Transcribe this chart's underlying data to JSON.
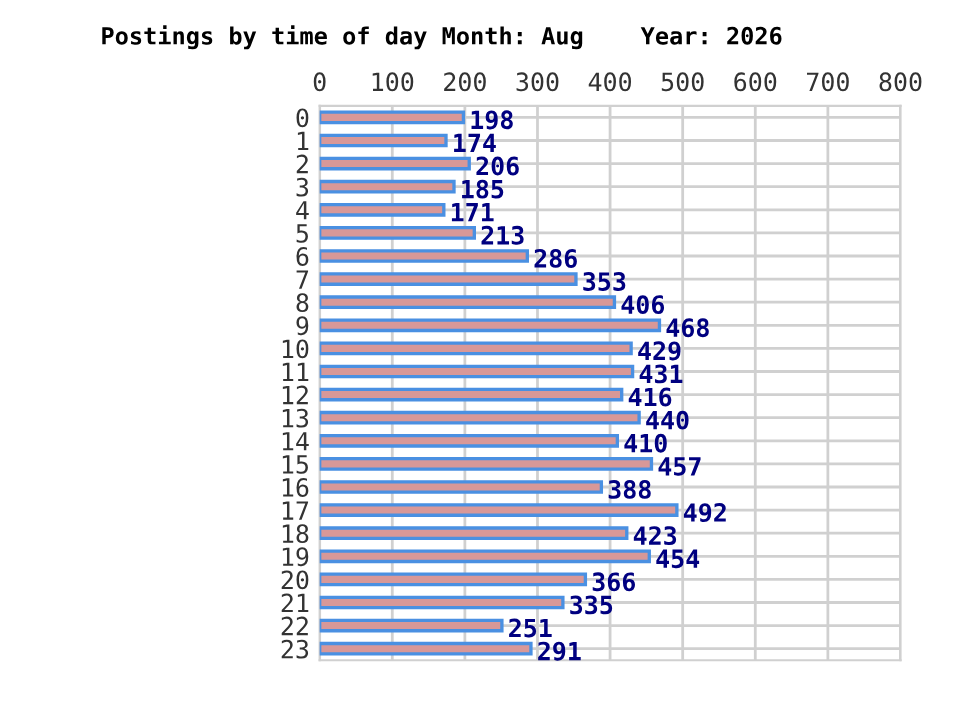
{
  "chart_data": {
    "type": "bar",
    "orientation": "horizontal",
    "title": "Postings by time of day Month: Aug    Year: 2026",
    "categories": [
      "0",
      "1",
      "2",
      "3",
      "4",
      "5",
      "6",
      "7",
      "8",
      "9",
      "10",
      "11",
      "12",
      "13",
      "14",
      "15",
      "16",
      "17",
      "18",
      "19",
      "20",
      "21",
      "22",
      "23"
    ],
    "values": [
      198,
      174,
      206,
      185,
      171,
      213,
      286,
      353,
      406,
      468,
      429,
      431,
      416,
      440,
      410,
      457,
      388,
      492,
      423,
      454,
      366,
      335,
      251,
      291
    ],
    "color": "#d89898",
    "xlim": [
      0,
      800
    ],
    "xticks": [
      0,
      100,
      200,
      300,
      400,
      500,
      600,
      700,
      800
    ],
    "grid": true,
    "data_labels": true
  }
}
